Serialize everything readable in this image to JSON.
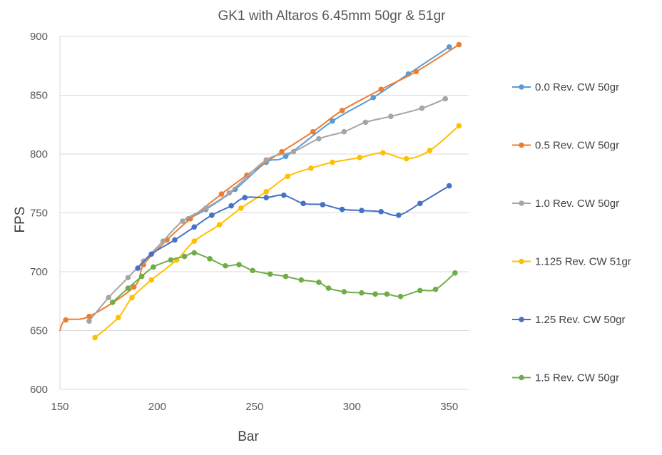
{
  "chart_data": {
    "type": "line",
    "title": "GK1 with Altaros 6.45mm 50gr & 51gr",
    "xlabel": "Bar",
    "ylabel": "FPS",
    "xlim": [
      150,
      360
    ],
    "ylim": [
      600,
      900
    ],
    "xticks": [
      150,
      200,
      250,
      300,
      350
    ],
    "yticks": [
      600,
      650,
      700,
      750,
      800,
      850,
      900
    ],
    "grid": "horizontal",
    "legend": "right",
    "smooth": true,
    "series": [
      {
        "name": "0.0 Rev. CW 50gr",
        "color": "#5B9BD5",
        "x": [
          216,
          225,
          240,
          256,
          266,
          290,
          311,
          329,
          350
        ],
        "y": [
          745,
          753,
          770,
          793,
          798,
          828,
          848,
          868,
          891
        ]
      },
      {
        "name": "0.5 Rev. CW 50gr",
        "color": "#ED7D31",
        "x": [
          153,
          165,
          188,
          193,
          205,
          217,
          233,
          246,
          264,
          280,
          295,
          315,
          333,
          355
        ],
        "y": [
          659,
          662,
          687,
          706,
          727,
          745,
          766,
          782,
          802,
          819,
          837,
          855,
          870,
          893
        ]
      },
      {
        "name": "1.0 Rev. CW 50gr",
        "color": "#A5A5A5",
        "x": [
          165,
          175,
          185,
          193,
          203,
          213,
          225,
          237,
          256,
          270,
          283,
          296,
          307,
          320,
          336,
          348
        ],
        "y": [
          658,
          678,
          695,
          709,
          726,
          743,
          754,
          767,
          795,
          802,
          813,
          819,
          827,
          832,
          839,
          847
        ]
      },
      {
        "name": "1.125 Rev. CW 51gr",
        "color": "#FFC000",
        "x": [
          168,
          180,
          187,
          197,
          210,
          219,
          232,
          243,
          256,
          267,
          279,
          290,
          304,
          316,
          328,
          340,
          355
        ],
        "y": [
          644,
          661,
          678,
          693,
          710,
          726,
          740,
          754,
          768,
          781,
          788,
          793,
          797,
          801,
          796,
          803,
          824
        ]
      },
      {
        "name": "1.25 Rev. CW 50gr",
        "color": "#4472C4",
        "x": [
          190,
          197,
          209,
          219,
          228,
          238,
          245,
          256,
          265,
          275,
          285,
          295,
          305,
          315,
          324,
          335,
          350
        ],
        "y": [
          703,
          715,
          727,
          738,
          748,
          756,
          763,
          763,
          765,
          758,
          757,
          753,
          752,
          751,
          748,
          758,
          773
        ]
      },
      {
        "name": "1.5 Rev. CW 50gr",
        "color": "#70AD47",
        "x": [
          185,
          177,
          192,
          198,
          207,
          214,
          219,
          227,
          235,
          242,
          249,
          258,
          266,
          274,
          283,
          288,
          296,
          305,
          312,
          318,
          325,
          335,
          343,
          353
        ],
        "y": [
          686,
          674,
          696,
          704,
          710,
          713,
          716,
          711,
          705,
          706,
          701,
          698,
          696,
          693,
          691,
          686,
          683,
          682,
          681,
          681,
          679,
          684,
          685,
          699
        ]
      }
    ]
  }
}
